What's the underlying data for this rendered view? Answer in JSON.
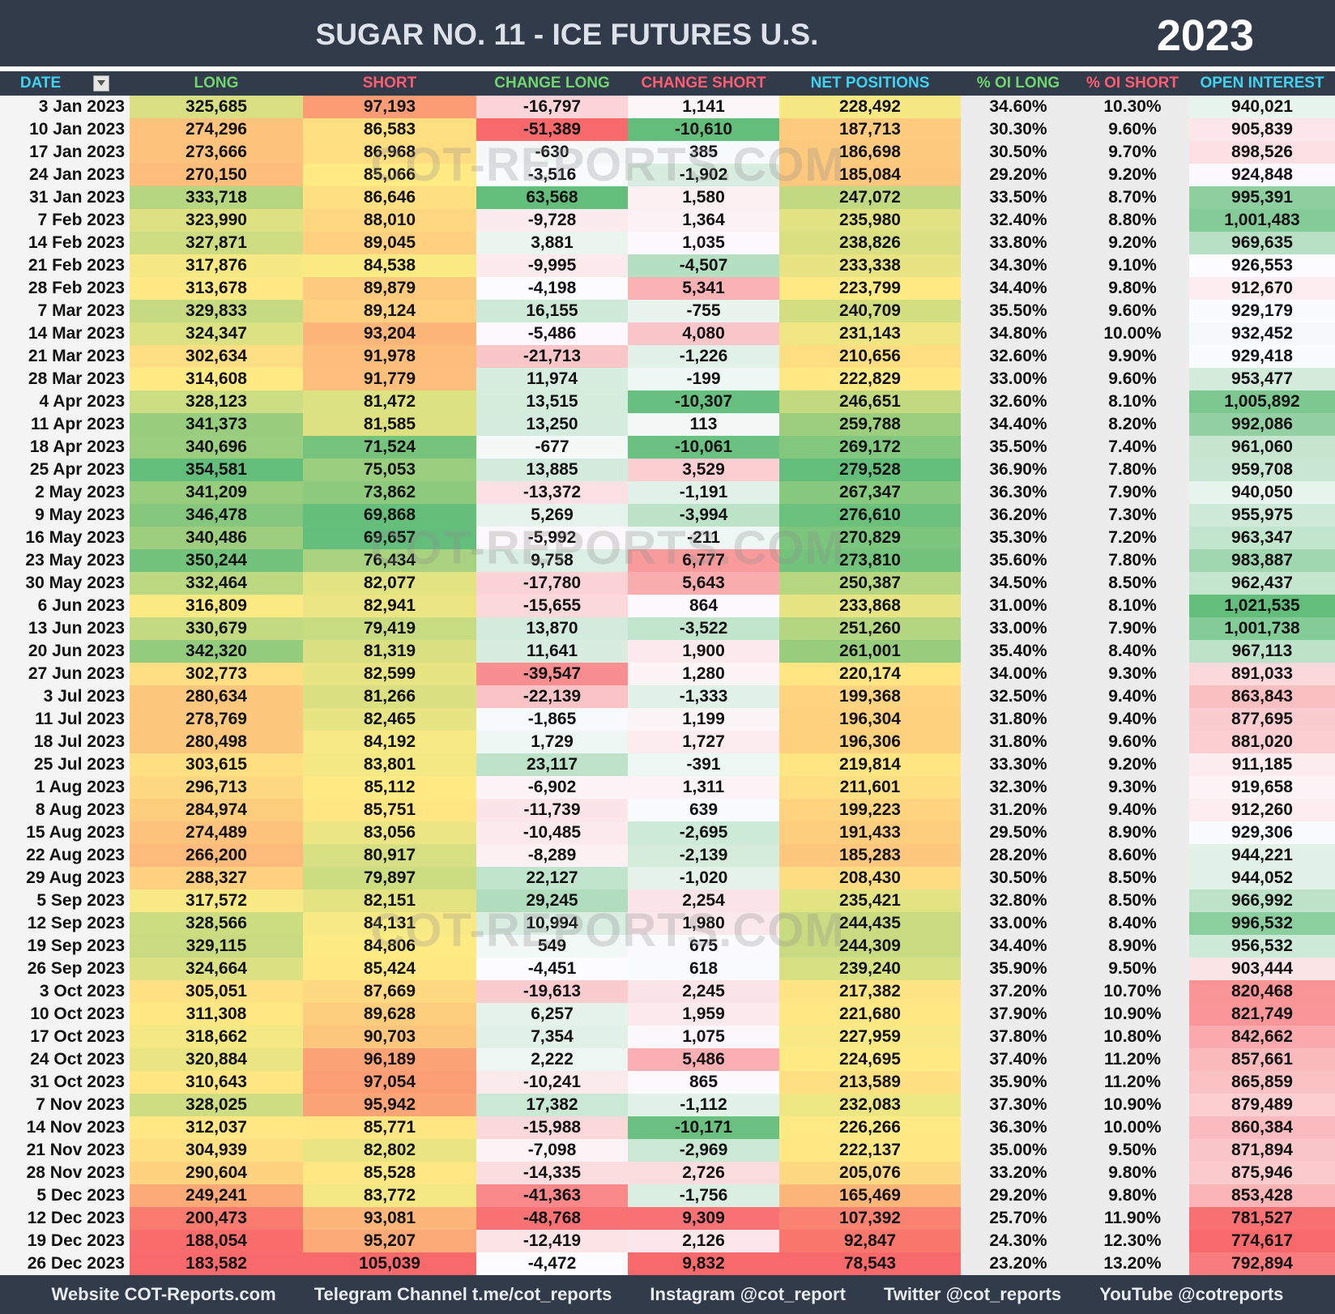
{
  "header": {
    "title": "SUGAR NO. 11 - ICE FUTURES U.S.",
    "year": "2023"
  },
  "watermark": "COT-REPORTS.COM",
  "table": {
    "headers": [
      "DATE",
      "LONG",
      "SHORT",
      "CHANGE LONG",
      "CHANGE SHORT",
      "NET POSITIONS",
      "% OI LONG",
      "% OI SHORT",
      "OPEN INTEREST"
    ],
    "header_colors": [
      "#3fd3f2",
      "#6fd66f",
      "#ff5c72",
      "#6fd66f",
      "#ff5c72",
      "#3fd3f2",
      "#6fd66f",
      "#ff5c72",
      "#3fd3f2"
    ],
    "column_colors": [
      null,
      [
        "#f8696b",
        "#ffeb84",
        "#63be7b"
      ],
      [
        "#63be7b",
        "#ffeb84",
        "#f8696b"
      ],
      [
        "#f8696b",
        "#fcfcff",
        "#63be7b"
      ],
      [
        "#63be7b",
        "#fcfcff",
        "#f8696b"
      ],
      [
        "#f8696b",
        "#ffeb84",
        "#63be7b"
      ],
      null,
      null,
      [
        "#f8696b",
        "#fcfcff",
        "#63be7b"
      ]
    ],
    "rows": [
      [
        "3 Jan 2023",
        "325,685",
        "97,193",
        "-16,797",
        "1,141",
        "228,492",
        "34.60%",
        "10.30%",
        "940,021"
      ],
      [
        "10 Jan 2023",
        "274,296",
        "86,583",
        "-51,389",
        "-10,610",
        "187,713",
        "30.30%",
        "9.60%",
        "905,839"
      ],
      [
        "17 Jan 2023",
        "273,666",
        "86,968",
        "-630",
        "385",
        "186,698",
        "30.50%",
        "9.70%",
        "898,526"
      ],
      [
        "24 Jan 2023",
        "270,150",
        "85,066",
        "-3,516",
        "-1,902",
        "185,084",
        "29.20%",
        "9.20%",
        "924,848"
      ],
      [
        "31 Jan 2023",
        "333,718",
        "86,646",
        "63,568",
        "1,580",
        "247,072",
        "33.50%",
        "8.70%",
        "995,391"
      ],
      [
        "7 Feb 2023",
        "323,990",
        "88,010",
        "-9,728",
        "1,364",
        "235,980",
        "32.40%",
        "8.80%",
        "1,001,483"
      ],
      [
        "14 Feb 2023",
        "327,871",
        "89,045",
        "3,881",
        "1,035",
        "238,826",
        "33.80%",
        "9.20%",
        "969,635"
      ],
      [
        "21 Feb 2023",
        "317,876",
        "84,538",
        "-9,995",
        "-4,507",
        "233,338",
        "34.30%",
        "9.10%",
        "926,553"
      ],
      [
        "28 Feb 2023",
        "313,678",
        "89,879",
        "-4,198",
        "5,341",
        "223,799",
        "34.40%",
        "9.80%",
        "912,670"
      ],
      [
        "7 Mar 2023",
        "329,833",
        "89,124",
        "16,155",
        "-755",
        "240,709",
        "35.50%",
        "9.60%",
        "929,179"
      ],
      [
        "14 Mar 2023",
        "324,347",
        "93,204",
        "-5,486",
        "4,080",
        "231,143",
        "34.80%",
        "10.00%",
        "932,452"
      ],
      [
        "21 Mar 2023",
        "302,634",
        "91,978",
        "-21,713",
        "-1,226",
        "210,656",
        "32.60%",
        "9.90%",
        "929,418"
      ],
      [
        "28 Mar 2023",
        "314,608",
        "91,779",
        "11,974",
        "-199",
        "222,829",
        "33.00%",
        "9.60%",
        "953,477"
      ],
      [
        "4 Apr 2023",
        "328,123",
        "81,472",
        "13,515",
        "-10,307",
        "246,651",
        "32.60%",
        "8.10%",
        "1,005,892"
      ],
      [
        "11 Apr 2023",
        "341,373",
        "81,585",
        "13,250",
        "113",
        "259,788",
        "34.40%",
        "8.20%",
        "992,086"
      ],
      [
        "18 Apr 2023",
        "340,696",
        "71,524",
        "-677",
        "-10,061",
        "269,172",
        "35.50%",
        "7.40%",
        "961,060"
      ],
      [
        "25 Apr 2023",
        "354,581",
        "75,053",
        "13,885",
        "3,529",
        "279,528",
        "36.90%",
        "7.80%",
        "959,708"
      ],
      [
        "2 May 2023",
        "341,209",
        "73,862",
        "-13,372",
        "-1,191",
        "267,347",
        "36.30%",
        "7.90%",
        "940,050"
      ],
      [
        "9 May 2023",
        "346,478",
        "69,868",
        "5,269",
        "-3,994",
        "276,610",
        "36.20%",
        "7.30%",
        "955,975"
      ],
      [
        "16 May 2023",
        "340,486",
        "69,657",
        "-5,992",
        "-211",
        "270,829",
        "35.30%",
        "7.20%",
        "963,347"
      ],
      [
        "23 May 2023",
        "350,244",
        "76,434",
        "9,758",
        "6,777",
        "273,810",
        "35.60%",
        "7.80%",
        "983,887"
      ],
      [
        "30 May 2023",
        "332,464",
        "82,077",
        "-17,780",
        "5,643",
        "250,387",
        "34.50%",
        "8.50%",
        "962,437"
      ],
      [
        "6 Jun 2023",
        "316,809",
        "82,941",
        "-15,655",
        "864",
        "233,868",
        "31.00%",
        "8.10%",
        "1,021,535"
      ],
      [
        "13 Jun 2023",
        "330,679",
        "79,419",
        "13,870",
        "-3,522",
        "251,260",
        "33.00%",
        "7.90%",
        "1,001,738"
      ],
      [
        "20 Jun 2023",
        "342,320",
        "81,319",
        "11,641",
        "1,900",
        "261,001",
        "35.40%",
        "8.40%",
        "967,113"
      ],
      [
        "27 Jun 2023",
        "302,773",
        "82,599",
        "-39,547",
        "1,280",
        "220,174",
        "34.00%",
        "9.30%",
        "891,033"
      ],
      [
        "3 Jul 2023",
        "280,634",
        "81,266",
        "-22,139",
        "-1,333",
        "199,368",
        "32.50%",
        "9.40%",
        "863,843"
      ],
      [
        "11 Jul 2023",
        "278,769",
        "82,465",
        "-1,865",
        "1,199",
        "196,304",
        "31.80%",
        "9.40%",
        "877,695"
      ],
      [
        "18 Jul 2023",
        "280,498",
        "84,192",
        "1,729",
        "1,727",
        "196,306",
        "31.80%",
        "9.60%",
        "881,020"
      ],
      [
        "25 Jul 2023",
        "303,615",
        "83,801",
        "23,117",
        "-391",
        "219,814",
        "33.30%",
        "9.20%",
        "911,185"
      ],
      [
        "1 Aug 2023",
        "296,713",
        "85,112",
        "-6,902",
        "1,311",
        "211,601",
        "32.30%",
        "9.30%",
        "919,658"
      ],
      [
        "8 Aug 2023",
        "284,974",
        "85,751",
        "-11,739",
        "639",
        "199,223",
        "31.20%",
        "9.40%",
        "912,260"
      ],
      [
        "15 Aug 2023",
        "274,489",
        "83,056",
        "-10,485",
        "-2,695",
        "191,433",
        "29.50%",
        "8.90%",
        "929,306"
      ],
      [
        "22 Aug 2023",
        "266,200",
        "80,917",
        "-8,289",
        "-2,139",
        "185,283",
        "28.20%",
        "8.60%",
        "944,221"
      ],
      [
        "29 Aug 2023",
        "288,327",
        "79,897",
        "22,127",
        "-1,020",
        "208,430",
        "30.50%",
        "8.50%",
        "944,052"
      ],
      [
        "5 Sep 2023",
        "317,572",
        "82,151",
        "29,245",
        "2,254",
        "235,421",
        "32.80%",
        "8.50%",
        "966,992"
      ],
      [
        "12 Sep 2023",
        "328,566",
        "84,131",
        "10,994",
        "1,980",
        "244,435",
        "33.00%",
        "8.40%",
        "996,532"
      ],
      [
        "19 Sep 2023",
        "329,115",
        "84,806",
        "549",
        "675",
        "244,309",
        "34.40%",
        "8.90%",
        "956,532"
      ],
      [
        "26 Sep 2023",
        "324,664",
        "85,424",
        "-4,451",
        "618",
        "239,240",
        "35.90%",
        "9.50%",
        "903,444"
      ],
      [
        "3 Oct 2023",
        "305,051",
        "87,669",
        "-19,613",
        "2,245",
        "217,382",
        "37.20%",
        "10.70%",
        "820,468"
      ],
      [
        "10 Oct 2023",
        "311,308",
        "89,628",
        "6,257",
        "1,959",
        "221,680",
        "37.90%",
        "10.90%",
        "821,749"
      ],
      [
        "17 Oct 2023",
        "318,662",
        "90,703",
        "7,354",
        "1,075",
        "227,959",
        "37.80%",
        "10.80%",
        "842,662"
      ],
      [
        "24 Oct 2023",
        "320,884",
        "96,189",
        "2,222",
        "5,486",
        "224,695",
        "37.40%",
        "11.20%",
        "857,661"
      ],
      [
        "31 Oct 2023",
        "310,643",
        "97,054",
        "-10,241",
        "865",
        "213,589",
        "35.90%",
        "11.20%",
        "865,859"
      ],
      [
        "7 Nov 2023",
        "328,025",
        "95,942",
        "17,382",
        "-1,112",
        "232,083",
        "37.30%",
        "10.90%",
        "879,489"
      ],
      [
        "14 Nov 2023",
        "312,037",
        "85,771",
        "-15,988",
        "-10,171",
        "226,266",
        "36.30%",
        "10.00%",
        "860,384"
      ],
      [
        "21 Nov 2023",
        "304,939",
        "82,802",
        "-7,098",
        "-2,969",
        "222,137",
        "35.00%",
        "9.50%",
        "871,894"
      ],
      [
        "28 Nov 2023",
        "290,604",
        "85,528",
        "-14,335",
        "2,726",
        "205,076",
        "33.20%",
        "9.80%",
        "875,946"
      ],
      [
        "5 Dec 2023",
        "249,241",
        "83,772",
        "-41,363",
        "-1,756",
        "165,469",
        "29.20%",
        "9.80%",
        "853,428"
      ],
      [
        "12 Dec 2023",
        "200,473",
        "93,081",
        "-48,768",
        "9,309",
        "107,392",
        "25.70%",
        "11.90%",
        "781,527"
      ],
      [
        "19 Dec 2023",
        "188,054",
        "95,207",
        "-12,419",
        "2,126",
        "92,847",
        "24.30%",
        "12.30%",
        "774,617"
      ],
      [
        "26 Dec 2023",
        "183,582",
        "105,039",
        "-4,472",
        "9,832",
        "78,543",
        "23.20%",
        "13.20%",
        "792,894"
      ]
    ]
  },
  "footer": [
    "Website COT-Reports.com",
    "Telegram Channel t.me/cot_reports",
    "Instagram @cot_report",
    "Twitter @cot_reports",
    "YouTube @cotreports"
  ]
}
